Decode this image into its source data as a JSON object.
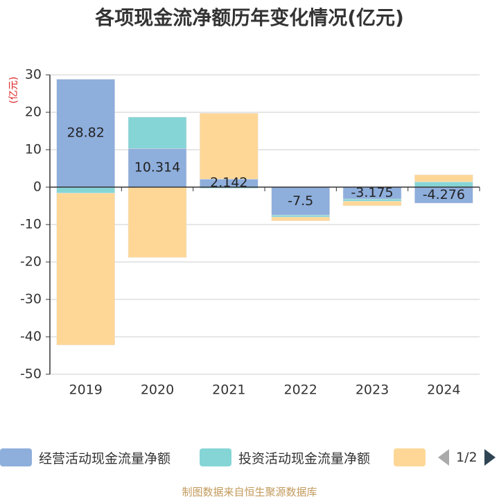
{
  "title": "各项现金流净额历年变化情况(亿元)",
  "source": "制图数据来自恒生聚源数据库",
  "legend": {
    "items": [
      {
        "label": "经营活动现金流量净额",
        "color": "#8eaedc"
      },
      {
        "label": "投资活动现金流量净额",
        "color": "#86d5d6"
      },
      {
        "label": "",
        "color": "#fed797"
      }
    ],
    "page": "1/2"
  },
  "chart_data": {
    "type": "bar",
    "stacked": true,
    "categories": [
      "2019",
      "2020",
      "2021",
      "2022",
      "2023",
      "2024"
    ],
    "ylabel": "(亿元)",
    "ylim": [
      -50,
      30
    ],
    "yticks": [
      30,
      20,
      10,
      0,
      -10,
      -20,
      -30,
      -40,
      -50
    ],
    "grid": true,
    "series": [
      {
        "name": "经营活动现金流量净额",
        "color": "#8eaedc",
        "values": [
          28.82,
          10.314,
          2.142,
          -7.5,
          -3.175,
          -4.276
        ],
        "labels": true
      },
      {
        "name": "投资活动现金流量净额",
        "color": "#86d5d6",
        "values": [
          -1.6,
          8.4,
          -0.3,
          -0.5,
          -0.6,
          1.4
        ],
        "labels": false
      },
      {
        "color": "#fed797",
        "values": [
          -40.6,
          -18.8,
          17.6,
          -1.0,
          -1.2,
          1.9
        ],
        "labels": false
      }
    ]
  }
}
